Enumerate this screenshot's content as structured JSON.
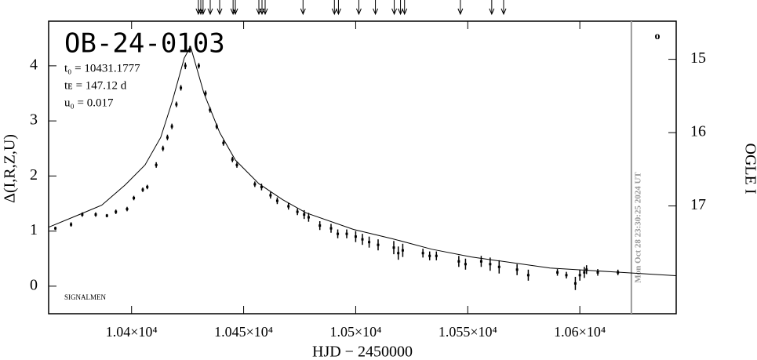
{
  "chart_data": {
    "type": "scatter",
    "title": "OB-24-0103",
    "annotations": [
      "t₀ = 10431.1777",
      "tᴇ = 147.12 d",
      "u₀ = 0.017"
    ],
    "note": "SIGNALMEN",
    "timestamp": "Mon Oct 28 23:30:25 2024 UT",
    "corner_symbol": "o",
    "x_label": "HJD − 2450000",
    "y_label": "Δ(I,R,Z,U)",
    "y2_label": "OGLE I",
    "color": "#000000",
    "xlim": [
      10363,
      10643
    ],
    "ylim": [
      -0.5,
      4.81
    ],
    "y2lim": [
      18.47,
      14.48
    ],
    "xticks": [
      {
        "value": 10400,
        "label": "1.04×10⁴"
      },
      {
        "value": 10450,
        "label": "1.045×10⁴"
      },
      {
        "value": 10500,
        "label": "1.05×10⁴"
      },
      {
        "value": 10550,
        "label": "1.055×10⁴"
      },
      {
        "value": 10600,
        "label": "1.06×10⁴"
      }
    ],
    "yticks": [
      0,
      1,
      2,
      3,
      4
    ],
    "y2ticks": [
      15,
      16,
      17
    ],
    "date_line_x": 10623,
    "arrows_x": [
      10429.8,
      10430.9,
      10431.9,
      10435.1,
      10439.3,
      10445.3,
      10446.3,
      10456.8,
      10458.2,
      10459.6,
      10476.5,
      10490.5,
      10492.3,
      10501.4,
      10508.8,
      10517.2,
      10520.0,
      10521.8,
      10546.7,
      10560.7,
      10566.0
    ],
    "x": [
      10366,
      10373,
      10378,
      10384,
      10389,
      10393,
      10398,
      10401,
      10405,
      10407,
      10411,
      10414,
      10416,
      10418,
      10420,
      10422,
      10424,
      10426,
      10430,
      10433,
      10435,
      10438,
      10441,
      10445,
      10447,
      10455,
      10458,
      10462,
      10465,
      10470,
      10474,
      10477,
      10479,
      10484,
      10489,
      10492,
      10496,
      10500,
      10503,
      10506,
      10510,
      10517,
      10519,
      10521,
      10530,
      10533,
      10536,
      10546,
      10549,
      10556,
      10560,
      10564,
      10572,
      10577,
      10590,
      10594,
      10598,
      10600,
      10602,
      10603,
      10608,
      10617
    ],
    "values": [
      1.05,
      1.12,
      1.3,
      1.3,
      1.28,
      1.35,
      1.4,
      1.6,
      1.75,
      1.8,
      2.2,
      2.5,
      2.7,
      2.9,
      3.3,
      3.6,
      4.0,
      4.3,
      4.0,
      3.5,
      3.2,
      2.9,
      2.6,
      2.3,
      2.2,
      1.85,
      1.8,
      1.65,
      1.55,
      1.45,
      1.35,
      1.3,
      1.25,
      1.1,
      1.05,
      0.95,
      0.95,
      0.9,
      0.85,
      0.8,
      0.75,
      0.7,
      0.6,
      0.65,
      0.6,
      0.55,
      0.55,
      0.45,
      0.4,
      0.45,
      0.4,
      0.35,
      0.3,
      0.2,
      0.25,
      0.2,
      0.05,
      0.2,
      0.25,
      0.3,
      0.25,
      0.25
    ],
    "errors": [
      0.03,
      0.04,
      0.04,
      0.04,
      0.03,
      0.04,
      0.04,
      0.04,
      0.04,
      0.04,
      0.05,
      0.05,
      0.05,
      0.05,
      0.05,
      0.05,
      0.06,
      0.06,
      0.05,
      0.05,
      0.05,
      0.05,
      0.05,
      0.05,
      0.05,
      0.05,
      0.06,
      0.06,
      0.06,
      0.06,
      0.06,
      0.08,
      0.08,
      0.08,
      0.08,
      0.08,
      0.08,
      0.1,
      0.1,
      0.1,
      0.1,
      0.12,
      0.12,
      0.12,
      0.08,
      0.08,
      0.08,
      0.1,
      0.1,
      0.1,
      0.12,
      0.12,
      0.1,
      0.1,
      0.06,
      0.06,
      0.12,
      0.1,
      0.1,
      0.08,
      0.06,
      0.05
    ],
    "model": {
      "x": [
        10363,
        10376.1,
        10386.7,
        10397.2,
        10406,
        10413,
        10418.2,
        10423.5,
        10426.3,
        10432.3,
        10439.3,
        10446.3,
        10456.8,
        10467.4,
        10477.9,
        10499,
        10516.5,
        10534,
        10551.6,
        10586.7,
        10614.7,
        10642.8
      ],
      "values": [
        1.07,
        1.29,
        1.47,
        1.84,
        2.2,
        2.7,
        3.36,
        4.14,
        4.35,
        3.5,
        2.79,
        2.29,
        1.86,
        1.57,
        1.33,
        1.03,
        0.86,
        0.67,
        0.53,
        0.33,
        0.26,
        0.19
      ]
    }
  }
}
